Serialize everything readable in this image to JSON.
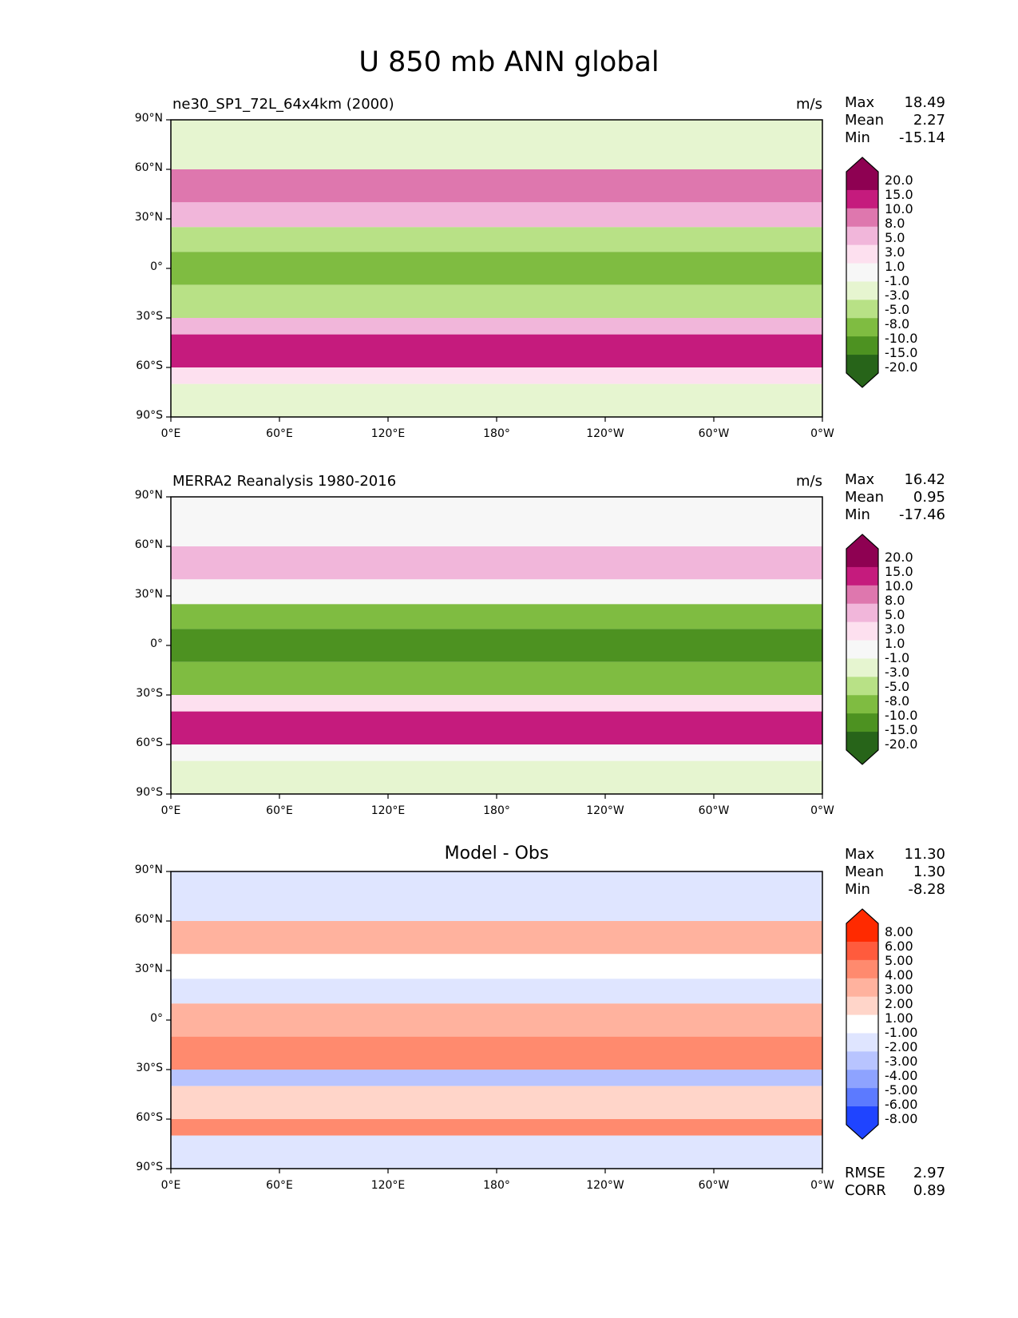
{
  "suptitle": "U 850 mb ANN global",
  "axes": {
    "yticks": [
      "90°N",
      "60°N",
      "30°N",
      "0°",
      "30°S",
      "60°S",
      "90°S"
    ],
    "xticks": [
      "0°E",
      "60°E",
      "120°E",
      "180°",
      "120°W",
      "60°W",
      "0°W"
    ]
  },
  "panels": [
    {
      "title": "ne30_SP1_72L_64x4km (2000)",
      "units": "m/s",
      "stats": {
        "max_label": "Max",
        "max": "18.49",
        "mean_label": "Mean",
        "mean": "2.27",
        "min_label": "Min",
        "min": "-15.14"
      },
      "colorbar": {
        "colors": [
          "#8e0152",
          "#c51b7d",
          "#de77ae",
          "#f1b6da",
          "#fde0ef",
          "#f7f7f7",
          "#e6f5d0",
          "#b8e186",
          "#7fbc41",
          "#4d9221",
          "#276419"
        ],
        "ticks": [
          "20.0",
          "15.0",
          "10.0",
          "8.0",
          "5.0",
          "3.0",
          "1.0",
          "-1.0",
          "-3.0",
          "-5.0",
          "-8.0",
          "-10.0",
          "-15.0",
          "-20.0"
        ]
      }
    },
    {
      "title": "MERRA2 Reanalysis 1980-2016",
      "units": "m/s",
      "stats": {
        "max_label": "Max",
        "max": "16.42",
        "mean_label": "Mean",
        "mean": "0.95",
        "min_label": "Min",
        "min": "-17.46"
      },
      "colorbar": {
        "colors": [
          "#8e0152",
          "#c51b7d",
          "#de77ae",
          "#f1b6da",
          "#fde0ef",
          "#f7f7f7",
          "#e6f5d0",
          "#b8e186",
          "#7fbc41",
          "#4d9221",
          "#276419"
        ],
        "ticks": [
          "20.0",
          "15.0",
          "10.0",
          "8.0",
          "5.0",
          "3.0",
          "1.0",
          "-1.0",
          "-3.0",
          "-5.0",
          "-8.0",
          "-10.0",
          "-15.0",
          "-20.0"
        ]
      }
    },
    {
      "title": "Model - Obs",
      "units": "",
      "stats": {
        "max_label": "Max",
        "max": "11.30",
        "mean_label": "Mean",
        "mean": "1.30",
        "min_label": "Min",
        "min": "-8.28"
      },
      "colorbar": {
        "colors": [
          "#ff2a00",
          "#ff5b3d",
          "#ff8a6e",
          "#ffb29e",
          "#ffd5c9",
          "#ffffff",
          "#dfe5ff",
          "#b8c4ff",
          "#8ea3ff",
          "#5c7aff",
          "#1f44ff"
        ],
        "ticks": [
          "8.00",
          "6.00",
          "5.00",
          "4.00",
          "3.00",
          "2.00",
          "1.00",
          "-1.00",
          "-2.00",
          "-3.00",
          "-4.00",
          "-5.00",
          "-6.00",
          "-8.00"
        ]
      },
      "rmse_label": "RMSE",
      "rmse": "2.97",
      "corr_label": "CORR",
      "corr": "0.89"
    }
  ],
  "chart_data": [
    {
      "type": "heatmap",
      "title": "ne30_SP1_72L_64x4km (2000)",
      "variable": "U 850 mb ANN global",
      "units": "m/s",
      "lon_range": [
        0,
        360
      ],
      "lat_range": [
        -90,
        90
      ],
      "summary": {
        "max": 18.49,
        "mean": 2.27,
        "min": -15.14
      },
      "levels": [
        -20,
        -15,
        -10,
        -8,
        -5,
        -3,
        -1,
        1,
        3,
        5,
        8,
        10,
        15,
        20
      ],
      "zonal_bands": [
        {
          "lat_range": [
            60,
            90
          ],
          "value": 0
        },
        {
          "lat_range": [
            40,
            60
          ],
          "value": 9
        },
        {
          "lat_range": [
            25,
            40
          ],
          "value": 5
        },
        {
          "lat_range": [
            10,
            25
          ],
          "value": -3
        },
        {
          "lat_range": [
            -10,
            10
          ],
          "value": -5
        },
        {
          "lat_range": [
            -30,
            -10
          ],
          "value": -3
        },
        {
          "lat_range": [
            -40,
            -30
          ],
          "value": 5
        },
        {
          "lat_range": [
            -60,
            -40
          ],
          "value": 13
        },
        {
          "lat_range": [
            -70,
            -60
          ],
          "value": 3
        },
        {
          "lat_range": [
            -90,
            -70
          ],
          "value": 0
        }
      ]
    },
    {
      "type": "heatmap",
      "title": "MERRA2 Reanalysis 1980-2016",
      "variable": "U 850 mb ANN global",
      "units": "m/s",
      "lon_range": [
        0,
        360
      ],
      "lat_range": [
        -90,
        90
      ],
      "summary": {
        "max": 16.42,
        "mean": 0.95,
        "min": -17.46
      },
      "levels": [
        -20,
        -15,
        -10,
        -8,
        -5,
        -3,
        -1,
        1,
        3,
        5,
        8,
        10,
        15,
        20
      ],
      "zonal_bands": [
        {
          "lat_range": [
            60,
            90
          ],
          "value": 1
        },
        {
          "lat_range": [
            40,
            60
          ],
          "value": 6
        },
        {
          "lat_range": [
            25,
            40
          ],
          "value": 2
        },
        {
          "lat_range": [
            10,
            25
          ],
          "value": -4
        },
        {
          "lat_range": [
            -10,
            10
          ],
          "value": -6
        },
        {
          "lat_range": [
            -30,
            -10
          ],
          "value": -4
        },
        {
          "lat_range": [
            -40,
            -30
          ],
          "value": 4
        },
        {
          "lat_range": [
            -60,
            -40
          ],
          "value": 12
        },
        {
          "lat_range": [
            -70,
            -60
          ],
          "value": 2
        },
        {
          "lat_range": [
            -90,
            -70
          ],
          "value": -1
        }
      ]
    },
    {
      "type": "heatmap",
      "title": "Model - Obs",
      "variable": "U 850 mb ANN global",
      "units": "m/s",
      "lon_range": [
        0,
        360
      ],
      "lat_range": [
        -90,
        90
      ],
      "summary": {
        "max": 11.3,
        "mean": 1.3,
        "min": -8.28,
        "rmse": 2.97,
        "corr": 0.89
      },
      "levels": [
        -8,
        -6,
        -5,
        -4,
        -3,
        -2,
        -1,
        1,
        2,
        3,
        4,
        5,
        6,
        8
      ],
      "zonal_bands": [
        {
          "lat_range": [
            60,
            90
          ],
          "value": -1
        },
        {
          "lat_range": [
            40,
            60
          ],
          "value": 3
        },
        {
          "lat_range": [
            25,
            40
          ],
          "value": 1
        },
        {
          "lat_range": [
            10,
            25
          ],
          "value": -1
        },
        {
          "lat_range": [
            -10,
            10
          ],
          "value": 3
        },
        {
          "lat_range": [
            -30,
            -10
          ],
          "value": 4
        },
        {
          "lat_range": [
            -40,
            -30
          ],
          "value": -2
        },
        {
          "lat_range": [
            -60,
            -40
          ],
          "value": 2
        },
        {
          "lat_range": [
            -70,
            -60
          ],
          "value": 4
        },
        {
          "lat_range": [
            -90,
            -70
          ],
          "value": 0
        }
      ]
    }
  ]
}
